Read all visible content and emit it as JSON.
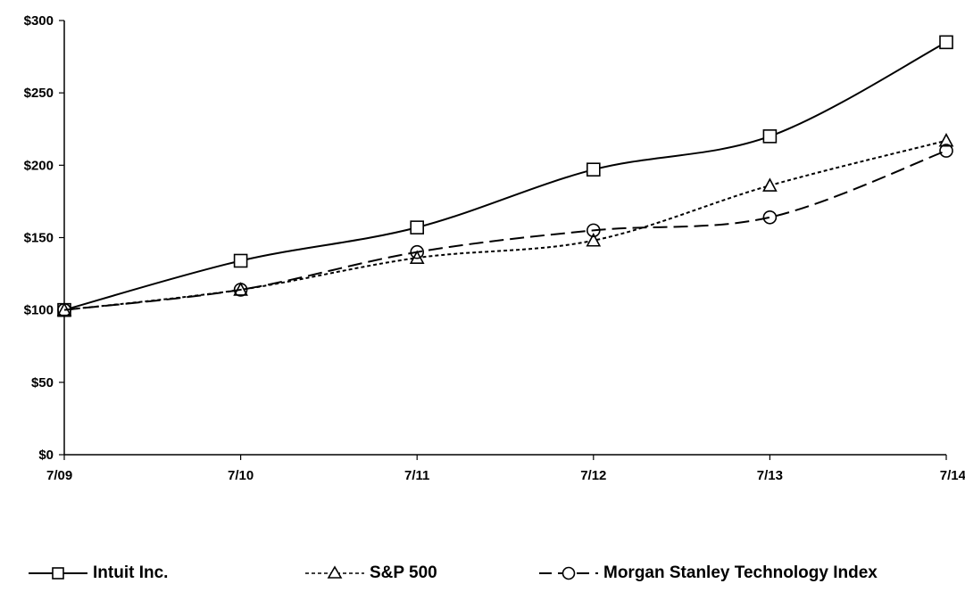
{
  "chart_data": {
    "type": "line",
    "categories": [
      "7/09",
      "7/10",
      "7/11",
      "7/12",
      "7/13",
      "7/14"
    ],
    "y_ticks": [
      "$0",
      "$50",
      "$100",
      "$150",
      "$200",
      "$250",
      "$300"
    ],
    "y_tick_values": [
      0,
      50,
      100,
      150,
      200,
      250,
      300
    ],
    "ylim": [
      0,
      300
    ],
    "grid": false,
    "legend_position": "bottom",
    "series": [
      {
        "name": "Intuit Inc.",
        "marker": "square",
        "dash": "solid",
        "color": "#000000",
        "values": [
          100,
          134,
          157,
          197,
          220,
          285
        ]
      },
      {
        "name": "S&P 500",
        "marker": "triangle",
        "dash": "dotted",
        "color": "#000000",
        "values": [
          100,
          114,
          136,
          148,
          186,
          217
        ]
      },
      {
        "name": "Morgan Stanley Technology Index",
        "marker": "circle",
        "dash": "long-dash",
        "color": "#000000",
        "values": [
          100,
          114,
          140,
          155,
          164,
          210
        ]
      }
    ]
  }
}
